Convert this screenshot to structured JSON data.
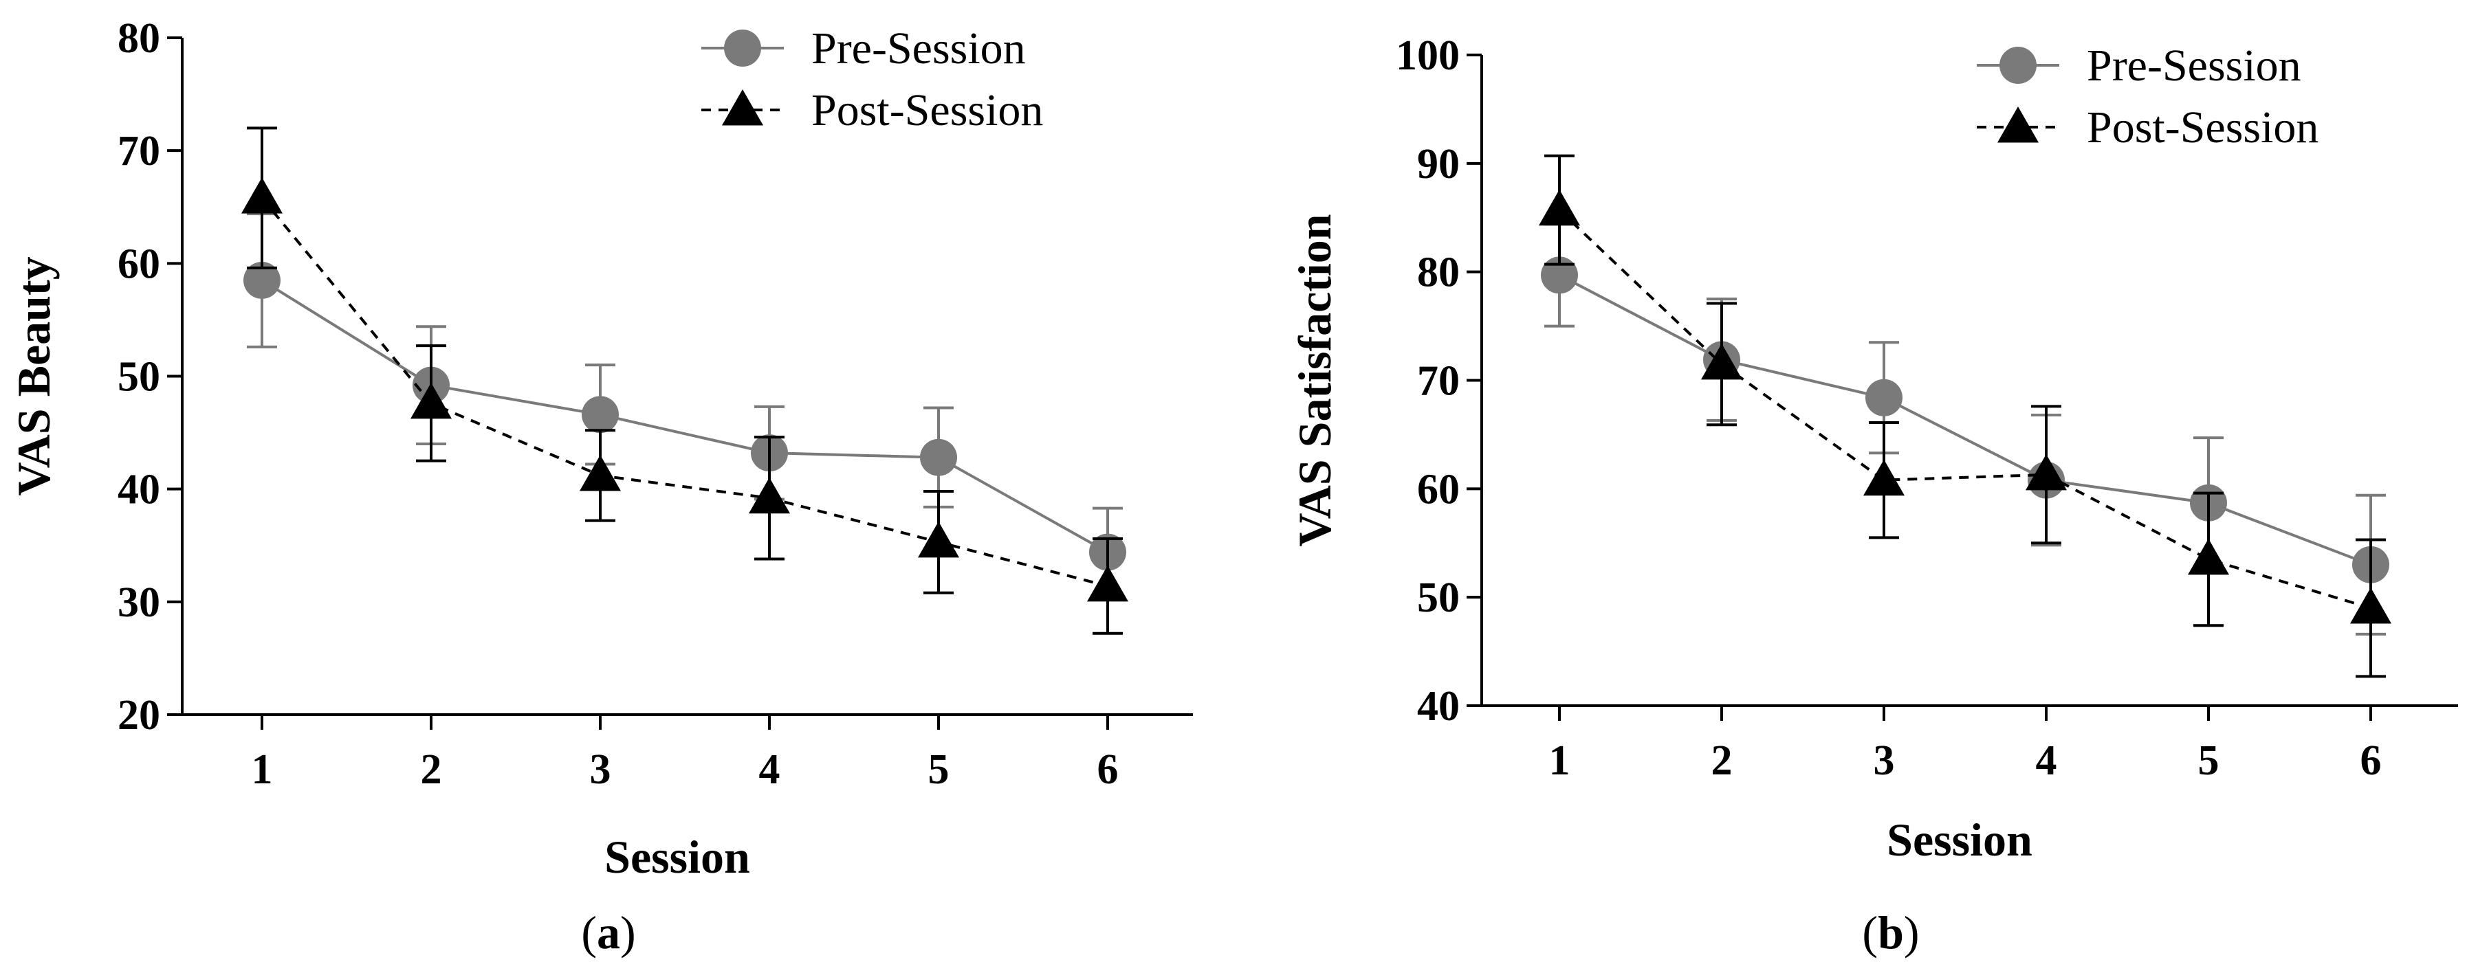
{
  "figure": {
    "panels": [
      {
        "label_prefix": "(",
        "label_letter": "a",
        "label_suffix": ")"
      },
      {
        "label_prefix": "(",
        "label_letter": "b",
        "label_suffix": ")"
      }
    ]
  },
  "colors": {
    "pre_session": "#7a7a7a",
    "post_session": "#000000",
    "axis": "#000000"
  },
  "chart_data": [
    {
      "type": "line",
      "panel": "a",
      "title": "",
      "xlabel": "Session",
      "ylabel": "VAS Beauty",
      "categories": [
        "1",
        "2",
        "3",
        "4",
        "5",
        "6"
      ],
      "ylim": [
        20,
        80
      ],
      "yticks": [
        20,
        30,
        40,
        50,
        60,
        70,
        80
      ],
      "legend_position": "top-right",
      "series": [
        {
          "name": "Pre-Session",
          "marker": "circle",
          "line_style": "solid",
          "values": [
            58.5,
            49.2,
            46.6,
            43.2,
            42.8,
            34.4
          ],
          "error": [
            5.9,
            5.2,
            4.4,
            4.1,
            4.4,
            3.9
          ]
        },
        {
          "name": "Post-Session",
          "marker": "triangle",
          "line_style": "dashed",
          "values": [
            65.8,
            47.6,
            41.2,
            39.2,
            35.3,
            31.4
          ],
          "error": [
            6.2,
            5.1,
            4.0,
            5.4,
            4.5,
            4.2
          ]
        }
      ]
    },
    {
      "type": "line",
      "panel": "b",
      "title": "",
      "xlabel": "Session",
      "ylabel": "VAS Satisfaction",
      "categories": [
        "1",
        "2",
        "3",
        "4",
        "5",
        "6"
      ],
      "ylim": [
        40,
        100
      ],
      "yticks": [
        40,
        50,
        60,
        70,
        80,
        90,
        100
      ],
      "legend_position": "top-right",
      "series": [
        {
          "name": "Pre-Session",
          "marker": "circle",
          "line_style": "solid",
          "values": [
            79.7,
            71.9,
            68.4,
            60.8,
            58.7,
            53.0
          ],
          "error": [
            4.7,
            5.6,
            5.1,
            6.0,
            6.0,
            6.4
          ]
        },
        {
          "name": "Post-Session",
          "marker": "triangle",
          "line_style": "dashed",
          "values": [
            85.7,
            71.5,
            60.8,
            61.3,
            53.5,
            49.0
          ],
          "error": [
            5.0,
            5.6,
            5.3,
            6.3,
            6.1,
            6.3
          ]
        }
      ]
    }
  ]
}
